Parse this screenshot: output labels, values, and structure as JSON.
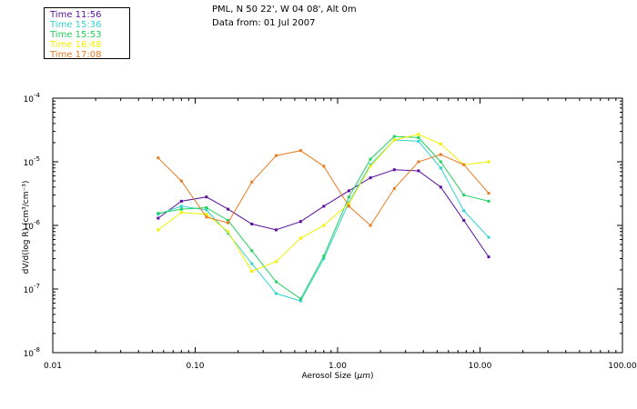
{
  "chart_data": {
    "type": "line",
    "title": "PML, N 50 22', W 04 08', Alt 0m",
    "subtitle": "Data from: 01 Jul 2007",
    "xlabel_prefix": "Aerosol Size (",
    "xlabel_unit": "µm",
    "xlabel_suffix": ")",
    "ylabel": "dV/d(log R) (cm³/cm⁻³)",
    "x_scale": "log",
    "y_scale": "log",
    "xlim": [
      0.01,
      100
    ],
    "ylim": [
      1e-08,
      0.0001
    ],
    "x_ticks": [
      {
        "value": 0.01,
        "label": "0.01"
      },
      {
        "value": 0.1,
        "label": "0.10"
      },
      {
        "value": 1,
        "label": "1.00"
      },
      {
        "value": 10,
        "label": "10.00"
      },
      {
        "value": 100,
        "label": "100.00"
      }
    ],
    "y_ticks": [
      {
        "value": 1e-08,
        "mant": "10",
        "exp": "-8"
      },
      {
        "value": 1e-07,
        "mant": "10",
        "exp": "-7"
      },
      {
        "value": 1e-06,
        "mant": "10",
        "exp": "-6"
      },
      {
        "value": 1e-05,
        "mant": "10",
        "exp": "-5"
      },
      {
        "value": 0.0001,
        "mant": "10",
        "exp": "-4"
      }
    ],
    "x": [
      0.055,
      0.08,
      0.12,
      0.17,
      0.25,
      0.37,
      0.55,
      0.8,
      1.2,
      1.7,
      2.5,
      3.7,
      5.3,
      7.7,
      11.5
    ],
    "series": [
      {
        "name": "Time 11:56",
        "color": "#5b0f9c",
        "values": [
          1.3e-06,
          2.4e-06,
          2.8e-06,
          1.8e-06,
          1.05e-06,
          8.5e-07,
          1.15e-06,
          2e-06,
          3.5e-06,
          5.6e-06,
          7.5e-06,
          7.2e-06,
          4e-06,
          1.2e-06,
          3.2e-07
        ]
      },
      {
        "name": "Time 15:36",
        "color": "#33d3cf",
        "values": [
          1.5e-06,
          2e-06,
          1.75e-06,
          7.5e-07,
          2.5e-07,
          8.5e-08,
          6.5e-08,
          3e-07,
          2.3e-06,
          9e-06,
          2.2e-05,
          2.1e-05,
          8e-06,
          1.7e-06,
          6.5e-07
        ]
      },
      {
        "name": "Time 15:53",
        "color": "#22d15f",
        "values": [
          1.55e-06,
          1.8e-06,
          1.9e-06,
          1.2e-06,
          4e-07,
          1.3e-07,
          7e-08,
          3.3e-07,
          2.8e-06,
          1.1e-05,
          2.5e-05,
          2.4e-05,
          1e-05,
          3e-06,
          2.4e-06
        ]
      },
      {
        "name": "Time 16:48",
        "color": "#f0f000",
        "values": [
          8.5e-07,
          1.6e-06,
          1.5e-06,
          8e-07,
          1.9e-07,
          2.7e-07,
          6.3e-07,
          1e-06,
          2.2e-06,
          8.5e-06,
          2.2e-05,
          2.7e-05,
          1.9e-05,
          9e-06,
          1e-05
        ]
      },
      {
        "name": "Time 17:08",
        "color": "#e77c1f",
        "values": [
          1.15e-05,
          5e-06,
          1.35e-06,
          1.1e-06,
          4.8e-06,
          1.25e-05,
          1.5e-05,
          8.5e-06,
          2e-06,
          1e-06,
          3.8e-06,
          1e-05,
          1.3e-05,
          9e-06,
          3.2e-06
        ]
      }
    ]
  }
}
